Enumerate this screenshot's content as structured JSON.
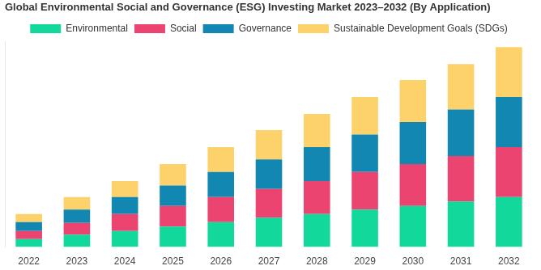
{
  "chart_data": {
    "type": "bar",
    "title": "Global Environmental Social and Governance (ESG) Investing Market 2023–2032 (By Application)",
    "categories": [
      "2022",
      "2023",
      "2024",
      "2025",
      "2026",
      "2027",
      "2028",
      "2029",
      "2030",
      "2031",
      "2032"
    ],
    "series": [
      {
        "name": "Environmental",
        "color": "#12d89b",
        "values": [
          9,
          14,
          18,
          23,
          28,
          33,
          37,
          42,
          46,
          51,
          56
        ]
      },
      {
        "name": "Social",
        "color": "#ec4470",
        "values": [
          9,
          13,
          19,
          23,
          28,
          32,
          37,
          42,
          47,
          51,
          56
        ]
      },
      {
        "name": "Governance",
        "color": "#1187b1",
        "values": [
          10,
          15,
          19,
          23,
          28,
          33,
          38,
          42,
          47,
          52,
          56
        ]
      },
      {
        "name": "Sustainable Development Goals (SDGs)",
        "color": "#fdd26b",
        "values": [
          9,
          14,
          18,
          24,
          28,
          33,
          37,
          42,
          47,
          51,
          56
        ]
      }
    ],
    "ylim": [
      0,
      230
    ],
    "stacked": true,
    "grid": false,
    "legend": "top",
    "tick_labels": "x"
  }
}
